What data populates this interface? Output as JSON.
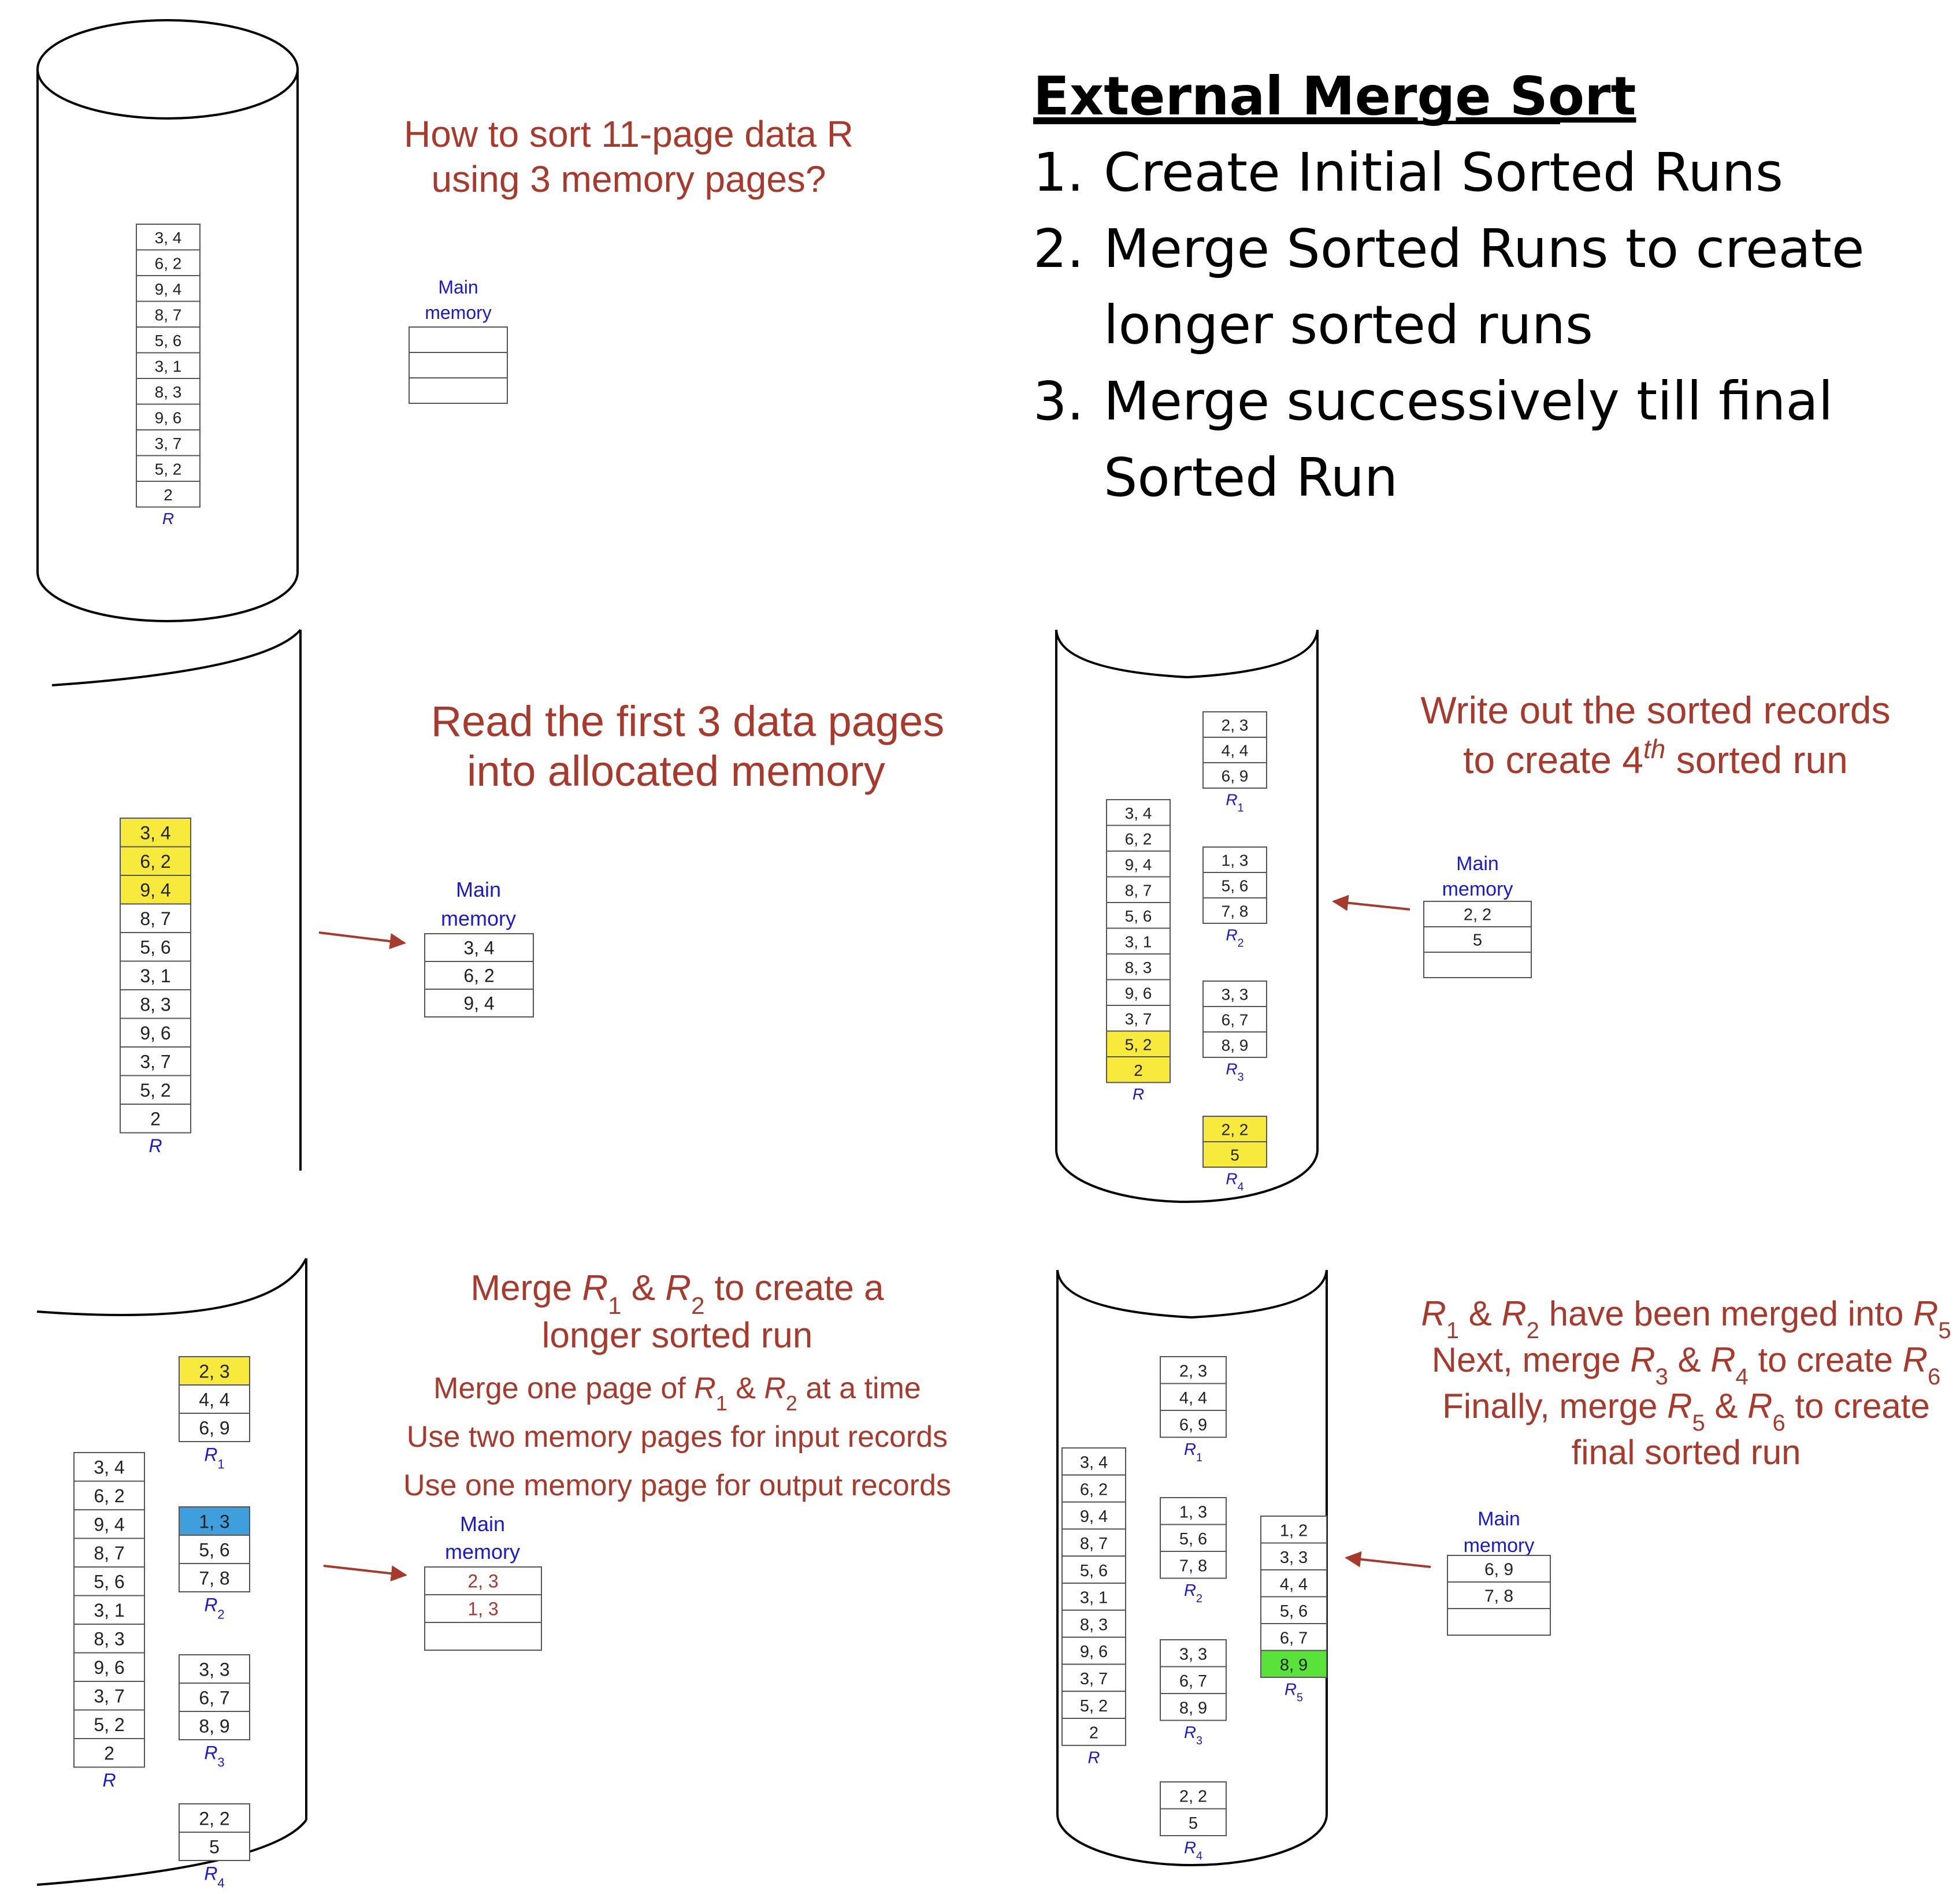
{
  "title": "External Merge Sort",
  "steps": [
    {
      "num": "1.",
      "lines": [
        "Create Initial Sorted Runs"
      ]
    },
    {
      "num": "2.",
      "lines": [
        "Merge Sorted Runs to create",
        "longer sorted runs"
      ]
    },
    {
      "num": "3.",
      "lines": [
        "Merge successively till final",
        "Sorted Run"
      ]
    }
  ],
  "colors": {
    "caption": "#a53a2d",
    "label": "#1a1acc",
    "yellow": "#f8ea3c",
    "blue": "#3e9fdc",
    "green": "#58e23a",
    "outline": "#555555",
    "arrow": "#a53a2d"
  },
  "memory_label": [
    "Main",
    "memory"
  ],
  "data_R": [
    "3, 4",
    "6, 2",
    "9, 4",
    "8, 7",
    "5, 6",
    "3, 1",
    "8, 3",
    "9, 6",
    "3, 7",
    "5, 2",
    "2"
  ],
  "runs": {
    "R1": [
      "2, 3",
      "4, 4",
      "6, 9"
    ],
    "R2": [
      "1, 3",
      "5, 6",
      "7, 8"
    ],
    "R3": [
      "3, 3",
      "6, 7",
      "8, 9"
    ],
    "R4": [
      "2, 2",
      "5"
    ],
    "R5": [
      "1, 2",
      "3, 3",
      "4, 4",
      "5, 6",
      "6, 7",
      "8, 9"
    ]
  },
  "panels": {
    "p1": {
      "caption": [
        "How to sort 11-page data R",
        "using 3 memory pages?"
      ],
      "memory": [
        "",
        "",
        ""
      ]
    },
    "p2": {
      "caption": [
        "Read the first 3 data pages",
        "into allocated memory"
      ],
      "memory": [
        "3, 4",
        "6, 2",
        "9, 4"
      ]
    },
    "p3": {
      "caption": [
        "Write out the sorted records",
        "to create 4th sorted run"
      ],
      "memory": [
        "2, 2",
        "5",
        ""
      ]
    },
    "p4": {
      "caption": [
        "Merge R1 & R2 to create a",
        "longer sorted run"
      ],
      "notes": [
        "Merge one page of R1 & R2 at a time",
        "Use two memory pages for input records",
        "Use one memory page for output records"
      ],
      "memory": [
        "2, 3",
        "1, 3",
        ""
      ]
    },
    "p5": {
      "caption": [
        "R1 & R2 have been merged into R5",
        "Next, merge R3 & R4 to create R6",
        "Finally, merge R5 & R6 to create",
        "final sorted run"
      ],
      "memory": [
        "6, 9",
        "7, 8",
        ""
      ]
    }
  }
}
